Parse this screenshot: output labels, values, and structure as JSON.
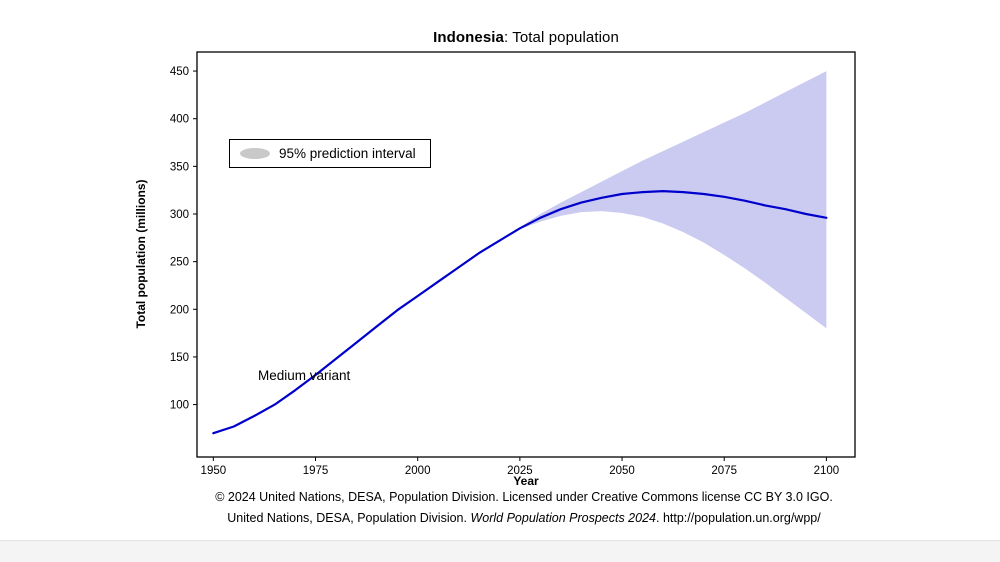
{
  "chart_data": {
    "type": "line",
    "title": "Indonesia: Total population",
    "title_bold": "Indonesia",
    "title_rest": ": Total population",
    "xlabel": "Year",
    "ylabel": "Total population (millions)",
    "legend": "95% prediction interval",
    "series_label": "Medium variant",
    "x_range": [
      1946,
      2107
    ],
    "y_range": [
      45,
      470
    ],
    "xticks": [
      1950,
      1975,
      2000,
      2025,
      2050,
      2075,
      2100
    ],
    "yticks": [
      100,
      150,
      200,
      250,
      300,
      350,
      400,
      450
    ],
    "line_color": "#0000cc",
    "band_color": "#cbcbf2",
    "series": [
      {
        "name": "Medium variant",
        "x": [
          1950,
          1955,
          1960,
          1965,
          1970,
          1975,
          1980,
          1985,
          1990,
          1995,
          2000,
          2005,
          2010,
          2015,
          2020,
          2025,
          2030,
          2035,
          2040,
          2045,
          2050,
          2055,
          2060,
          2065,
          2070,
          2075,
          2080,
          2085,
          2090,
          2095,
          2100
        ],
        "y": [
          70,
          77,
          88,
          100,
          115,
          131,
          148,
          165,
          182,
          199,
          214,
          229,
          244,
          259,
          272,
          285,
          296,
          305,
          312,
          317,
          321,
          323,
          324,
          323,
          321,
          318,
          314,
          309,
          305,
          300,
          296
        ]
      }
    ],
    "band": {
      "name": "95% prediction interval",
      "x": [
        2025,
        2030,
        2035,
        2040,
        2045,
        2050,
        2055,
        2060,
        2065,
        2070,
        2075,
        2080,
        2085,
        2090,
        2095,
        2100
      ],
      "upper": [
        286,
        300,
        312,
        323,
        334,
        345,
        356,
        366,
        376,
        386,
        396,
        406,
        417,
        428,
        439,
        450
      ],
      "lower": [
        284,
        292,
        298,
        302,
        303,
        301,
        297,
        290,
        281,
        270,
        257,
        243,
        228,
        212,
        196,
        180
      ]
    }
  },
  "footer": {
    "line1": "© 2024 United Nations, DESA, Population Division. Licensed under Creative Commons license CC BY 3.0 IGO.",
    "line2_pre": "United Nations, DESA, Population Division. ",
    "line2_italic": "World Population Prospects 2024",
    "line2_post": ". http://population.un.org/wpp/"
  }
}
